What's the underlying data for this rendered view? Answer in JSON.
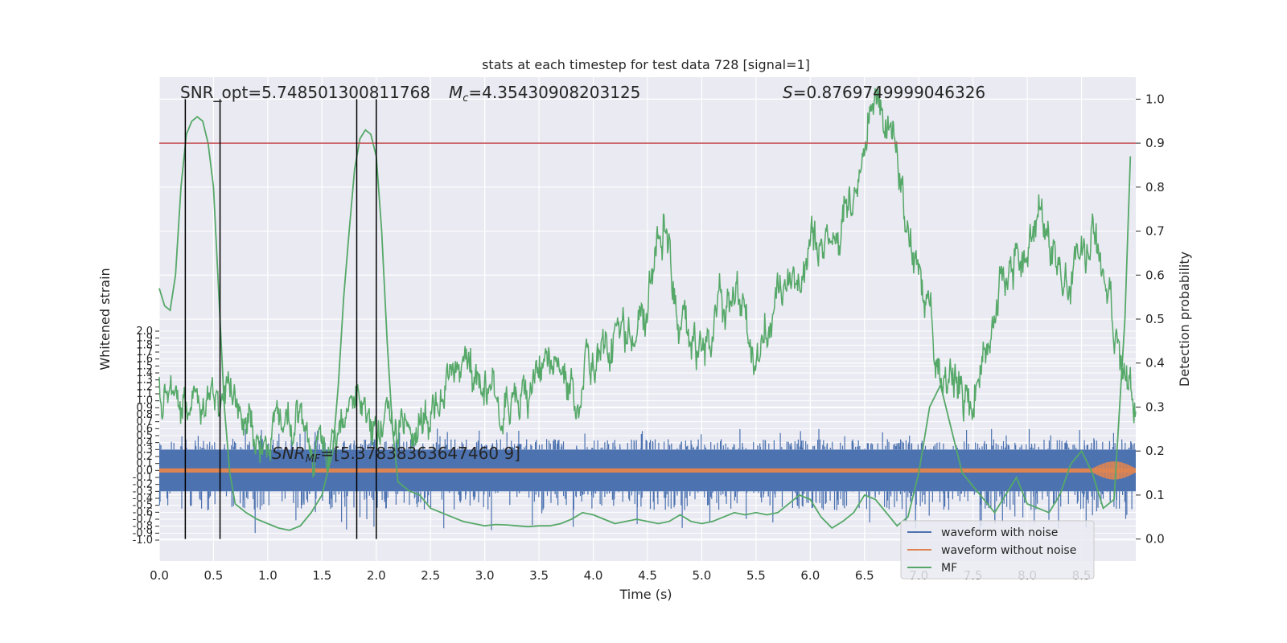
{
  "chart_data": {
    "type": "line",
    "title": "stats at each timestep for test data 728 [signal=1]",
    "xlabel": "Time (s)",
    "ylabel_left": "Whitened strain",
    "ylabel_right": "Detection probability",
    "xlim": [
      0.0,
      9.0
    ],
    "ylim_left": [
      -1.0,
      2.0
    ],
    "ylim_right": [
      -0.05,
      1.05
    ],
    "x_ticks": [
      "0.0",
      "0.5",
      "1.0",
      "1.5",
      "2.0",
      "2.5",
      "3.0",
      "3.5",
      "4.0",
      "4.5",
      "5.0",
      "5.5",
      "6.0",
      "6.5",
      "7.0",
      "7.5",
      "8.0",
      "8.5"
    ],
    "left_ticks": [
      "-1.0",
      "-0.9",
      "-0.8",
      "-0.7",
      "-0.6",
      "-0.5",
      "-0.4",
      "-0.3",
      "-0.2",
      "-0.1",
      "0.0",
      "0.1",
      "0.2",
      "0.3",
      "0.4",
      "0.5",
      "0.6",
      "0.7",
      "0.8",
      "0.9",
      "1.0",
      "1.1",
      "1.2",
      "1.3",
      "1.4",
      "1.5",
      "1.6",
      "1.7",
      "1.8",
      "1.9",
      "2.0"
    ],
    "right_ticks": [
      "0.0",
      "0.1",
      "0.2",
      "0.3",
      "0.4",
      "0.5",
      "0.6",
      "0.7",
      "0.8",
      "0.9",
      "1.0"
    ],
    "threshold": 0.9,
    "vertical_lines": [
      0.24,
      0.56,
      1.82,
      2.0
    ],
    "annotations": {
      "snr_opt": "SNR_opt=5.748501300811768",
      "mc_symbol": "M",
      "mc_sub": "c",
      "mc_value": "=4.35430908203125",
      "s_symbol": "S",
      "s_value": "=0.8769749999046326",
      "snr_mf_symbol": "SNR",
      "snr_mf_sub": "MF",
      "snr_mf_value": "=[5.37838363647460 9]"
    },
    "legend": [
      "waveform with noise",
      "waveform without noise",
      "MF"
    ],
    "series": [
      {
        "name": "waveform with noise",
        "color": "#4c72b0",
        "band": [
          -0.3,
          0.3
        ],
        "spikes_range": [
          -0.9,
          0.6
        ]
      },
      {
        "name": "waveform without noise",
        "color": "#dd8452",
        "band": [
          -0.03,
          0.03
        ]
      },
      {
        "name": "MF",
        "color": "#55a868",
        "x": [
          0.0,
          0.05,
          0.1,
          0.15,
          0.2,
          0.25,
          0.3,
          0.35,
          0.4,
          0.45,
          0.5,
          0.55,
          0.6,
          0.65,
          0.7,
          0.75,
          0.8,
          0.9,
          1.0,
          1.1,
          1.2,
          1.3,
          1.4,
          1.5,
          1.6,
          1.65,
          1.7,
          1.75,
          1.8,
          1.85,
          1.9,
          1.95,
          2.0,
          2.05,
          2.1,
          2.15,
          2.2,
          2.25,
          2.3,
          2.4,
          2.5,
          2.6,
          2.7,
          2.8,
          2.9,
          3.0,
          3.1,
          3.2,
          3.3,
          3.4,
          3.5,
          3.6,
          3.7,
          3.8,
          3.9,
          4.0,
          4.1,
          4.2,
          4.3,
          4.4,
          4.5,
          4.6,
          4.7,
          4.8,
          4.9,
          5.0,
          5.1,
          5.2,
          5.3,
          5.4,
          5.5,
          5.6,
          5.7,
          5.8,
          5.9,
          6.0,
          6.1,
          6.2,
          6.3,
          6.4,
          6.5,
          6.6,
          6.7,
          6.8,
          6.9,
          7.0,
          7.1,
          7.2,
          7.3,
          7.4,
          7.5,
          7.6,
          7.7,
          7.8,
          7.9,
          8.0,
          8.1,
          8.2,
          8.3,
          8.4,
          8.5,
          8.6,
          8.7,
          8.8,
          8.9,
          8.95
        ],
        "y": [
          0.57,
          0.53,
          0.52,
          0.6,
          0.8,
          0.92,
          0.95,
          0.96,
          0.95,
          0.9,
          0.8,
          0.55,
          0.3,
          0.15,
          0.08,
          0.07,
          0.06,
          0.045,
          0.035,
          0.025,
          0.02,
          0.03,
          0.06,
          0.1,
          0.2,
          0.35,
          0.55,
          0.7,
          0.84,
          0.91,
          0.93,
          0.92,
          0.87,
          0.7,
          0.45,
          0.25,
          0.13,
          0.12,
          0.11,
          0.1,
          0.07,
          0.06,
          0.05,
          0.04,
          0.035,
          0.03,
          0.033,
          0.032,
          0.03,
          0.028,
          0.03,
          0.03,
          0.035,
          0.045,
          0.06,
          0.055,
          0.045,
          0.035,
          0.04,
          0.045,
          0.04,
          0.035,
          0.04,
          0.055,
          0.04,
          0.035,
          0.04,
          0.05,
          0.06,
          0.055,
          0.06,
          0.055,
          0.06,
          0.08,
          0.1,
          0.09,
          0.05,
          0.025,
          0.04,
          0.06,
          0.1,
          0.09,
          0.06,
          0.03,
          0.05,
          0.15,
          0.3,
          0.35,
          0.25,
          0.15,
          0.12,
          0.09,
          0.06,
          0.1,
          0.14,
          0.08,
          0.07,
          0.06,
          0.1,
          0.17,
          0.2,
          0.15,
          0.07,
          0.09,
          0.5,
          0.87
        ]
      }
    ],
    "mf_noisy_trace": {
      "description_points_x": [
        0.0,
        0.3,
        0.6,
        0.9,
        1.2,
        1.5,
        1.8,
        2.1,
        2.4,
        2.7,
        3.0,
        3.3,
        3.6,
        3.9,
        4.2,
        4.5,
        4.65,
        4.8,
        5.0,
        5.3,
        5.5,
        5.7,
        6.0,
        6.3,
        6.6,
        6.7,
        6.9,
        7.2,
        7.5,
        7.8,
        8.1,
        8.4,
        8.6,
        8.8,
        9.0
      ],
      "description_points_y": [
        0.37,
        0.28,
        0.35,
        0.25,
        0.28,
        0.22,
        0.33,
        0.25,
        0.22,
        0.36,
        0.38,
        0.3,
        0.4,
        0.39,
        0.44,
        0.5,
        0.7,
        0.48,
        0.42,
        0.58,
        0.41,
        0.6,
        0.63,
        0.72,
        0.99,
        0.92,
        0.7,
        0.4,
        0.32,
        0.58,
        0.73,
        0.58,
        0.65,
        0.5,
        0.3
      ]
    }
  }
}
